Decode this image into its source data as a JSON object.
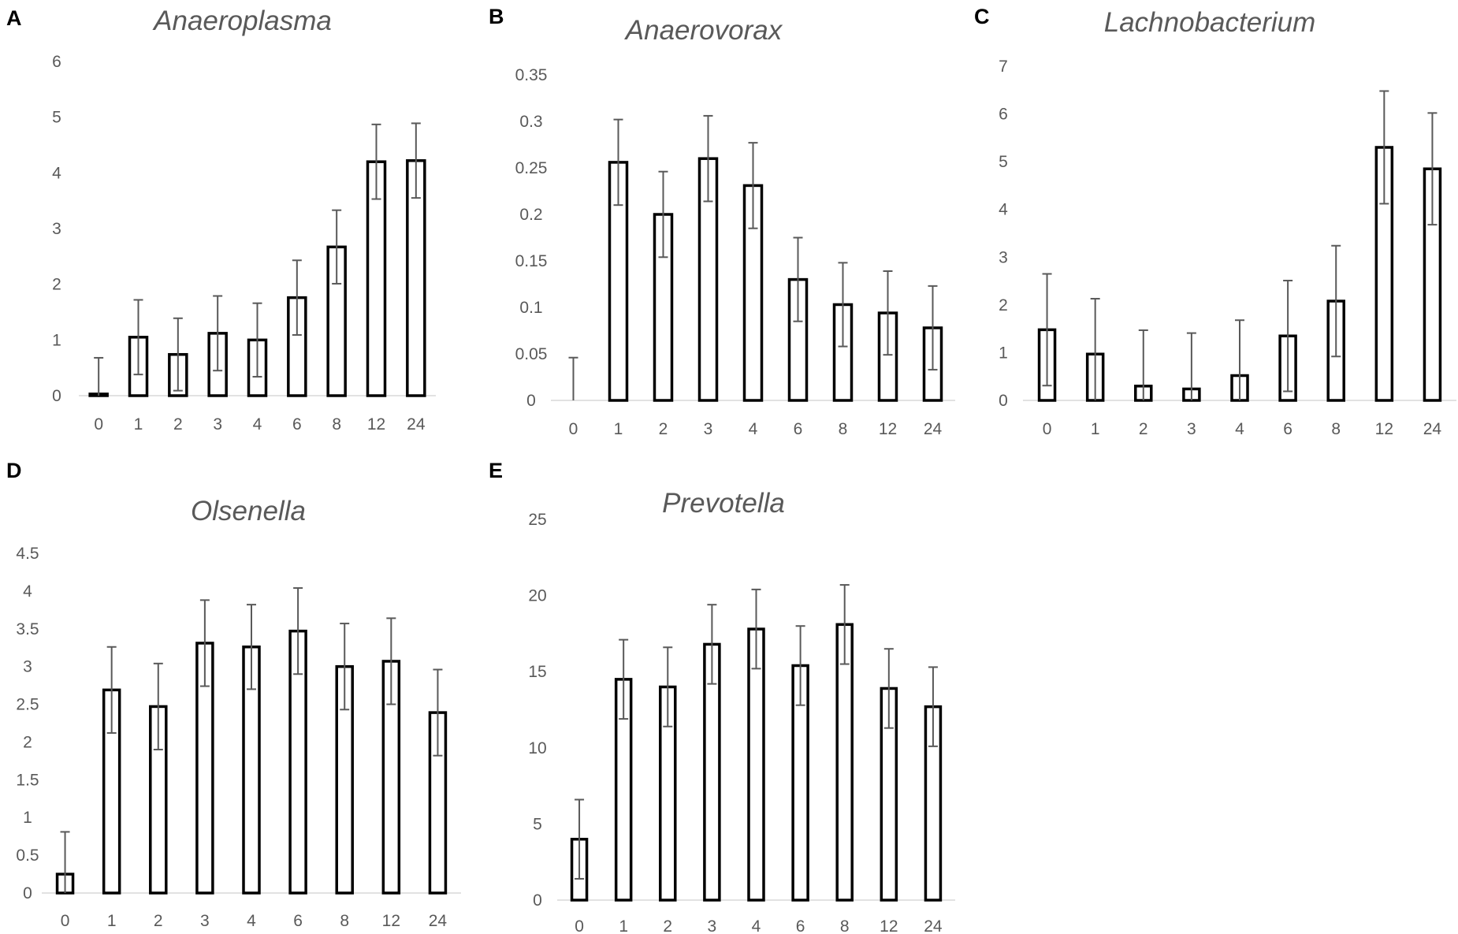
{
  "chart_data": [
    {
      "panel": "A",
      "type": "bar",
      "title": "Anaeroplasma",
      "categories": [
        "0",
        "1",
        "2",
        "3",
        "4",
        "6",
        "8",
        "12",
        "24"
      ],
      "values": [
        0.03,
        1.05,
        0.74,
        1.12,
        1.0,
        1.76,
        2.67,
        4.2,
        4.22
      ],
      "errors": [
        0.65,
        0.67,
        0.65,
        0.67,
        0.66,
        0.67,
        0.66,
        0.67,
        0.67
      ],
      "yticks": [
        "0",
        "1",
        "2",
        "3",
        "4",
        "5",
        "6"
      ],
      "ylim": [
        0,
        6
      ],
      "xlabel": "",
      "ylabel": "",
      "legend": "none"
    },
    {
      "panel": "B",
      "type": "bar",
      "title": "Anaerovorax",
      "categories": [
        "0",
        "1",
        "2",
        "3",
        "4",
        "6",
        "8",
        "12",
        "24"
      ],
      "values": [
        0.0,
        0.256,
        0.2,
        0.26,
        0.231,
        0.13,
        0.103,
        0.094,
        0.078
      ],
      "errors": [
        0.046,
        0.046,
        0.046,
        0.046,
        0.046,
        0.045,
        0.045,
        0.045,
        0.045
      ],
      "yticks": [
        "0",
        "0.05",
        "0.1",
        "0.15",
        "0.2",
        "0.25",
        "0.3",
        "0.35"
      ],
      "ylim": [
        0,
        0.35
      ],
      "xlabel": "",
      "ylabel": "",
      "legend": "none"
    },
    {
      "panel": "C",
      "type": "bar",
      "title": "Lachnobacterium",
      "categories": [
        "0",
        "1",
        "2",
        "3",
        "4",
        "6",
        "8",
        "12",
        "24"
      ],
      "values": [
        1.48,
        0.97,
        0.3,
        0.24,
        0.52,
        1.35,
        2.08,
        5.3,
        4.85
      ],
      "errors": [
        1.17,
        1.16,
        1.17,
        1.17,
        1.16,
        1.16,
        1.16,
        1.18,
        1.17
      ],
      "yticks": [
        "0",
        "1",
        "2",
        "3",
        "4",
        "5",
        "6",
        "7"
      ],
      "ylim": [
        0,
        7
      ],
      "xlabel": "",
      "ylabel": "",
      "legend": "none"
    },
    {
      "panel": "D",
      "type": "bar",
      "title": "Olsenella",
      "categories": [
        "0",
        "1",
        "2",
        "3",
        "4",
        "6",
        "8",
        "12",
        "24"
      ],
      "values": [
        0.25,
        2.69,
        2.47,
        3.31,
        3.26,
        3.47,
        3.0,
        3.07,
        2.39
      ],
      "errors": [
        0.56,
        0.57,
        0.57,
        0.57,
        0.56,
        0.57,
        0.57,
        0.57,
        0.57
      ],
      "yticks": [
        "0",
        "0.5",
        "1",
        "1.5",
        "2",
        "2.5",
        "3",
        "3.5",
        "4",
        "4.5"
      ],
      "ylim": [
        0,
        4.5
      ],
      "xlabel": "",
      "ylabel": "",
      "legend": "none"
    },
    {
      "panel": "E",
      "type": "bar",
      "title": "Prevotella",
      "categories": [
        "0",
        "1",
        "2",
        "3",
        "4",
        "6",
        "8",
        "12",
        "24"
      ],
      "values": [
        4.0,
        14.5,
        14.0,
        16.8,
        17.8,
        15.4,
        18.1,
        13.9,
        12.7
      ],
      "errors": [
        2.6,
        2.6,
        2.6,
        2.6,
        2.6,
        2.6,
        2.6,
        2.6,
        2.6
      ],
      "yticks": [
        "0",
        "5",
        "10",
        "15",
        "20",
        "25"
      ],
      "ylim": [
        0,
        25
      ],
      "xlabel": "",
      "ylabel": "",
      "legend": "none"
    }
  ]
}
